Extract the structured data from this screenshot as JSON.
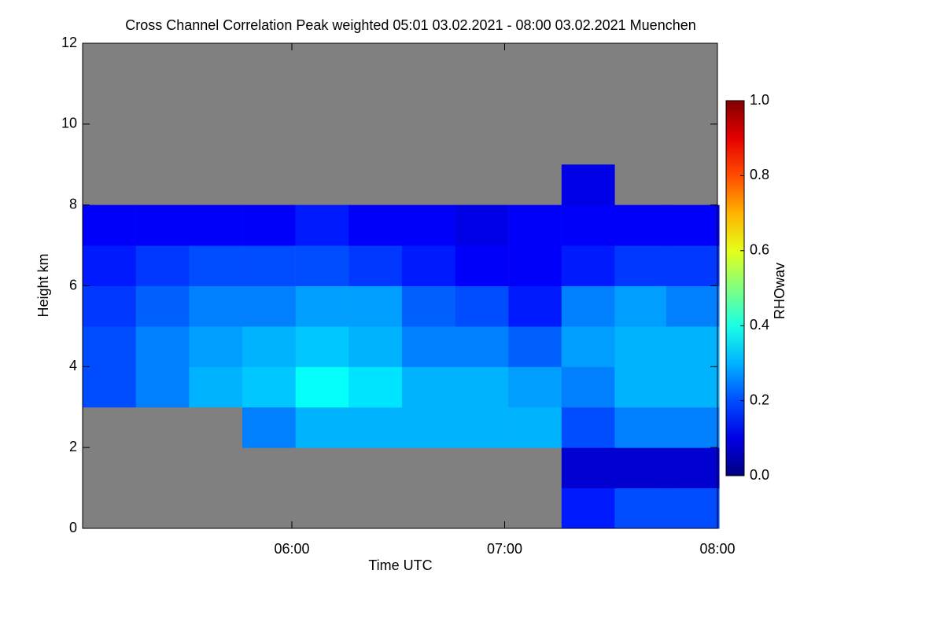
{
  "chart_data": {
    "type": "heatmap",
    "title": "Cross Channel Correlation Peak weighted   05:01 03.02.2021 - 08:00 03.02.2021 Muenchen",
    "xlabel": "Time UTC",
    "ylabel": "Height km",
    "colorbar_label": "RHOwav",
    "colormap": "jet",
    "background": "#808080",
    "xlim": [
      301,
      480
    ],
    "xticks": [
      {
        "value": 360,
        "label": "06:00"
      },
      {
        "value": 420,
        "label": "07:00"
      },
      {
        "value": 480,
        "label": "08:00"
      }
    ],
    "ylim": [
      0,
      12
    ],
    "yticks": [
      0,
      2,
      4,
      6,
      8,
      10,
      12
    ],
    "clim": [
      0,
      1
    ],
    "cticks": [
      {
        "value": 0,
        "label": "0.0"
      },
      {
        "value": 0.2,
        "label": "0.2"
      },
      {
        "value": 0.4,
        "label": "0.4"
      },
      {
        "value": 0.6,
        "label": "0.6"
      },
      {
        "value": 0.8,
        "label": "0.8"
      },
      {
        "value": 1,
        "label": "1.0"
      }
    ],
    "x": [
      308.5,
      323.5,
      338.5,
      353.5,
      368.5,
      383.5,
      398.5,
      413.5,
      428.5,
      443.5,
      458.5,
      473
    ],
    "y": [
      0.5,
      1.5,
      2.5,
      3.5,
      4.5,
      5.5,
      6.5,
      7.5,
      8.5,
      9.5,
      10.5,
      11.5
    ],
    "values": [
      [
        null,
        null,
        null,
        null,
        null,
        null,
        null,
        null,
        null,
        0.15,
        0.2,
        0.2
      ],
      [
        null,
        null,
        null,
        null,
        null,
        null,
        null,
        null,
        null,
        0.08,
        0.08,
        0.08
      ],
      [
        null,
        null,
        null,
        0.25,
        0.3,
        0.3,
        0.3,
        0.3,
        0.3,
        0.2,
        0.25,
        0.25
      ],
      [
        0.2,
        0.25,
        0.3,
        0.32,
        0.38,
        0.35,
        0.3,
        0.3,
        0.28,
        0.25,
        0.3,
        0.3
      ],
      [
        0.2,
        0.25,
        0.28,
        0.3,
        0.32,
        0.3,
        0.25,
        0.25,
        0.22,
        0.28,
        0.3,
        0.3
      ],
      [
        0.18,
        0.22,
        0.25,
        0.25,
        0.28,
        0.28,
        0.22,
        0.2,
        0.15,
        0.25,
        0.28,
        0.25
      ],
      [
        0.15,
        0.18,
        0.2,
        0.2,
        0.2,
        0.18,
        0.15,
        0.12,
        0.12,
        0.15,
        0.18,
        0.18
      ],
      [
        0.12,
        0.12,
        0.12,
        0.12,
        0.15,
        0.12,
        0.12,
        0.1,
        0.12,
        0.12,
        0.12,
        0.12
      ],
      [
        null,
        null,
        null,
        null,
        null,
        null,
        null,
        null,
        null,
        0.1,
        null,
        null
      ],
      [
        null,
        null,
        null,
        null,
        null,
        null,
        null,
        null,
        null,
        null,
        null,
        null
      ],
      [
        null,
        null,
        null,
        null,
        null,
        null,
        null,
        null,
        null,
        null,
        null,
        null
      ],
      [
        null,
        null,
        null,
        null,
        null,
        null,
        null,
        null,
        null,
        null,
        null,
        null
      ]
    ]
  }
}
